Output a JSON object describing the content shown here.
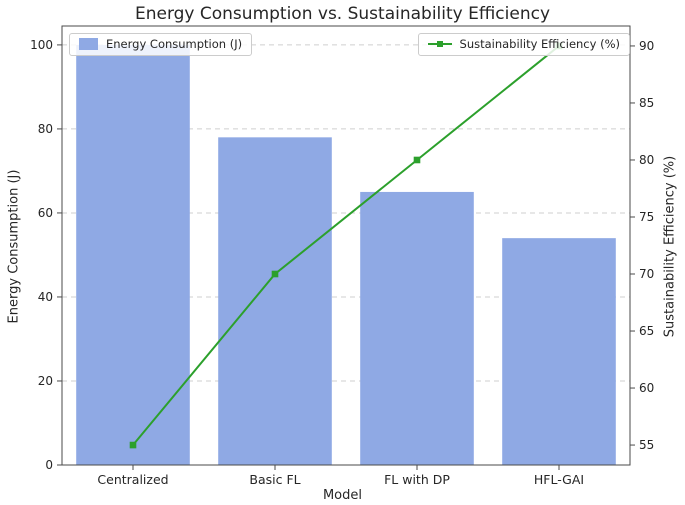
{
  "chart_data": {
    "type": "bar",
    "title": "Energy Consumption vs. Sustainability Efficiency",
    "xlabel": "Model",
    "categories": [
      "Centralized",
      "Basic FL",
      "FL with DP",
      "HFL-GAI"
    ],
    "series": [
      {
        "name": "Energy Consumption (J)",
        "type": "bar",
        "axis": "left",
        "color": "#8fa9e4",
        "values": [
          100,
          78,
          65,
          54
        ]
      },
      {
        "name": "Sustainability Efficiency (%)",
        "type": "line",
        "axis": "right",
        "color": "#2ca02c",
        "marker": "square",
        "values": [
          55,
          70,
          80,
          90
        ]
      }
    ],
    "left_axis": {
      "label": "Energy Consumption (J)",
      "lim": [
        0,
        104.5
      ],
      "ticks": [
        0,
        20,
        40,
        60,
        80,
        100
      ]
    },
    "right_axis": {
      "label": "Sustainability Efficiency (%)",
      "lim": [
        53.25,
        91.75
      ],
      "ticks": [
        55,
        60,
        65,
        70,
        75,
        80,
        85,
        90
      ]
    },
    "grid": {
      "on": true,
      "style": "dashed",
      "color": "#cfcfcf"
    },
    "legend": {
      "positions": [
        "upper left",
        "upper right"
      ]
    }
  }
}
